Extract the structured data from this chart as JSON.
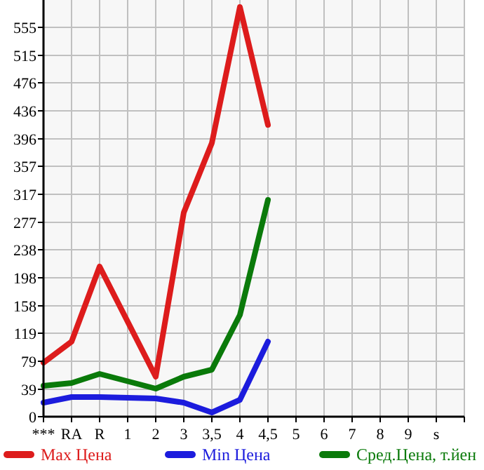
{
  "chart_data": {
    "type": "line",
    "categories": [
      "***",
      "RA",
      "R",
      "1",
      "2",
      "3",
      "3,5",
      "4",
      "4,5",
      "5",
      "6",
      "7",
      "8",
      "9",
      "s"
    ],
    "series": [
      {
        "name": "Max Цена",
        "color": "#dd1c1c",
        "values": [
          77,
          107,
          214,
          null,
          57,
          291,
          390,
          584,
          416,
          null,
          null,
          null,
          null,
          null,
          null
        ]
      },
      {
        "name": "Min Цена",
        "color": "#1c1cdd",
        "values": [
          20,
          28,
          28,
          null,
          26,
          20,
          6,
          24,
          107,
          null,
          null,
          null,
          null,
          null,
          null
        ]
      },
      {
        "name": "Сред.Цена, т.йен",
        "color": "#0a7a0a",
        "values": [
          44,
          48,
          61,
          null,
          40,
          57,
          67,
          145,
          309,
          null,
          null,
          null,
          null,
          null,
          null
        ]
      }
    ],
    "ylim": [
      0,
      594
    ],
    "yticks": [
      0,
      39,
      79,
      119,
      158,
      198,
      238,
      277,
      317,
      357,
      396,
      436,
      476,
      515,
      555
    ],
    "grid": true,
    "legend": "bottom",
    "line_style": "solid"
  }
}
